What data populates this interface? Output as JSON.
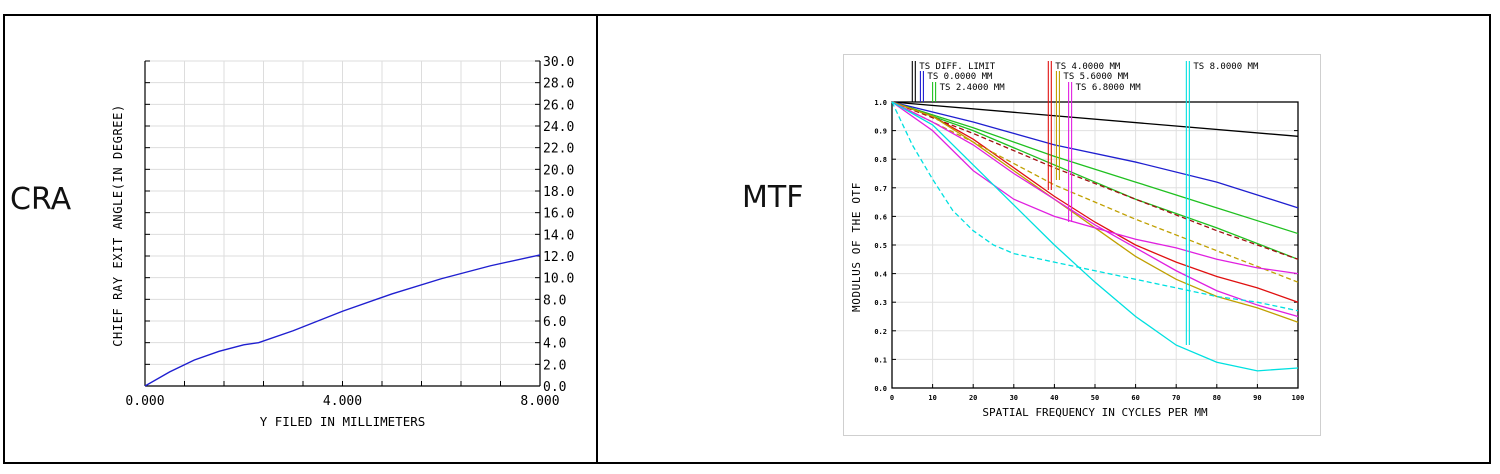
{
  "panels": {
    "cra_label": "CRA",
    "mtf_label": "MTF"
  },
  "chart_data": [
    {
      "type": "line",
      "title": "",
      "xlabel": "Y FILED IN MILLIMETERS",
      "ylabel": "CHIEF RAY EXIT ANGLE(IN DEGREE)",
      "xlim": [
        0,
        8
      ],
      "ylim": [
        0,
        30
      ],
      "x_ticks": [
        "0.000",
        "4.000",
        "8.000"
      ],
      "y_ticks": [
        "0.0",
        "2.0",
        "4.0",
        "6.0",
        "8.0",
        "10.0",
        "12.0",
        "14.0",
        "16.0",
        "18.0",
        "20.0",
        "22.0",
        "24.0",
        "26.0",
        "28.0",
        "30.0"
      ],
      "grid": true,
      "series": [
        {
          "color": "#1f1fd0",
          "x": [
            0,
            0.5,
            1.0,
            1.5,
            2.0,
            2.3,
            3.0,
            4.0,
            5.0,
            6.0,
            7.0,
            8.0
          ],
          "y": [
            0.0,
            1.3,
            2.4,
            3.2,
            3.8,
            4.0,
            5.1,
            6.9,
            8.5,
            9.9,
            11.1,
            12.1
          ]
        }
      ]
    },
    {
      "type": "line",
      "title": "",
      "xlabel": "SPATIAL FREQUENCY IN CYCLES PER MM",
      "ylabel": "MODULUS OF THE OTF",
      "xlim": [
        0,
        100
      ],
      "ylim": [
        0,
        1.0
      ],
      "x_ticks": [
        "0",
        "10",
        "20",
        "30",
        "40",
        "50",
        "60",
        "70",
        "80",
        "90",
        "100"
      ],
      "y_ticks": [
        "0.0",
        "0.1",
        "0.2",
        "0.3",
        "0.4",
        "0.5",
        "0.6",
        "0.7",
        "0.8",
        "0.9",
        "1.0"
      ],
      "grid": true,
      "legend_labels": [
        {
          "text": "TS DIFF. LIMIT",
          "color": "#000000",
          "x": 5
        },
        {
          "text": "TS 0.0000 MM",
          "color": "#1f1fd0",
          "x": 7
        },
        {
          "text": "TS 2.4000 MM",
          "color": "#20c020",
          "x": 10
        },
        {
          "text": "TS 4.0000 MM",
          "color": "#e01010",
          "x": 38.5
        },
        {
          "text": "TS 5.6000 MM",
          "color": "#c0a000",
          "x": 40.5
        },
        {
          "text": "TS 6.8000 MM",
          "color": "#e020e0",
          "x": 43.5
        },
        {
          "text": "TS 8.0000 MM",
          "color": "#00e0e0",
          "x": 72.5
        }
      ],
      "series": [
        {
          "name": "TS DIFF. LIMIT",
          "color": "#000000",
          "dash": false,
          "x": [
            0,
            100
          ],
          "y": [
            1.0,
            0.88
          ]
        },
        {
          "name": "TS 0.0000 MM",
          "color": "#1f1fd0",
          "dash": false,
          "x": [
            0,
            20,
            40,
            60,
            80,
            100
          ],
          "y": [
            1.0,
            0.93,
            0.85,
            0.79,
            0.72,
            0.63
          ]
        },
        {
          "color": "#20c020",
          "dash": false,
          "x": [
            0,
            20,
            40,
            60,
            80,
            100
          ],
          "y": [
            1.0,
            0.91,
            0.81,
            0.72,
            0.63,
            0.54
          ]
        },
        {
          "color": "#20c020",
          "dash": false,
          "x": [
            0,
            20,
            40,
            60,
            80,
            100
          ],
          "y": [
            1.0,
            0.9,
            0.78,
            0.66,
            0.56,
            0.45
          ]
        },
        {
          "color": "#e01010",
          "dash": false,
          "x": [
            0,
            10,
            20,
            30,
            40,
            50,
            60,
            70,
            80,
            90,
            100
          ],
          "y": [
            1.0,
            0.95,
            0.87,
            0.77,
            0.67,
            0.58,
            0.5,
            0.44,
            0.39,
            0.35,
            0.3
          ]
        },
        {
          "color": "#a01010",
          "dash": true,
          "x": [
            0,
            20,
            40,
            60,
            80,
            100
          ],
          "y": [
            1.0,
            0.89,
            0.77,
            0.66,
            0.55,
            0.45
          ]
        },
        {
          "color": "#c0a000",
          "dash": false,
          "x": [
            0,
            10,
            20,
            30,
            40,
            50,
            60,
            70,
            80,
            90,
            100
          ],
          "y": [
            1.0,
            0.95,
            0.86,
            0.76,
            0.66,
            0.56,
            0.46,
            0.38,
            0.32,
            0.28,
            0.23
          ]
        },
        {
          "color": "#c0a000",
          "dash": true,
          "x": [
            0,
            20,
            40,
            60,
            80,
            100
          ],
          "y": [
            1.0,
            0.86,
            0.71,
            0.59,
            0.48,
            0.37
          ]
        },
        {
          "color": "#e020e0",
          "dash": false,
          "x": [
            0,
            10,
            20,
            30,
            40,
            50,
            60,
            70,
            80,
            90,
            100
          ],
          "y": [
            1.0,
            0.9,
            0.76,
            0.66,
            0.6,
            0.56,
            0.52,
            0.49,
            0.45,
            0.42,
            0.4
          ]
        },
        {
          "color": "#e020e0",
          "dash": false,
          "x": [
            0,
            10,
            20,
            30,
            40,
            50,
            60,
            70,
            80,
            90,
            100
          ],
          "y": [
            1.0,
            0.93,
            0.85,
            0.75,
            0.66,
            0.57,
            0.49,
            0.41,
            0.34,
            0.29,
            0.25
          ]
        },
        {
          "color": "#00e0e0",
          "dash": true,
          "x": [
            0,
            5,
            10,
            15,
            20,
            25,
            30,
            40,
            50,
            60,
            70,
            80,
            90,
            100
          ],
          "y": [
            1.0,
            0.85,
            0.73,
            0.62,
            0.55,
            0.5,
            0.47,
            0.44,
            0.41,
            0.38,
            0.35,
            0.32,
            0.3,
            0.27
          ]
        },
        {
          "color": "#00e0e0",
          "dash": false,
          "x": [
            0,
            10,
            20,
            30,
            40,
            50,
            60,
            70,
            80,
            90,
            100
          ],
          "y": [
            1.0,
            0.92,
            0.78,
            0.64,
            0.5,
            0.37,
            0.25,
            0.15,
            0.09,
            0.06,
            0.07
          ]
        }
      ]
    }
  ]
}
